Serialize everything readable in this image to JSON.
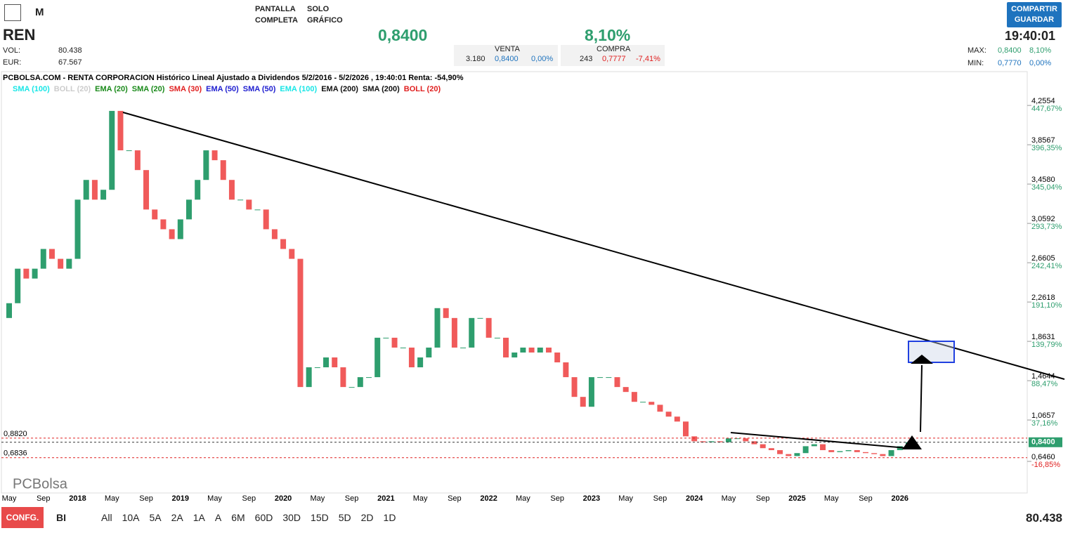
{
  "toolbar": {
    "period": "M",
    "fullscreen": [
      "PANTALLA",
      "COMPLETA"
    ],
    "chart_only": [
      "SOLO",
      "GRÁFICO"
    ],
    "share": [
      "COMPARTIR",
      "GUARDAR"
    ]
  },
  "quote": {
    "ticker": "REN",
    "vol_label": "VOL:",
    "vol": "80.438",
    "eur_label": "EUR:",
    "eur": "67.567",
    "price": "0,8400",
    "change": "8,10%",
    "sell_label": "VENTA",
    "sell": [
      "3.180",
      "0,8400",
      "0,00%"
    ],
    "buy_label": "COMPRA",
    "buy": [
      "243",
      "0,7777",
      "-7,41%"
    ],
    "time": "19:40:01",
    "max_label": "MAX:",
    "max": [
      "0,8400",
      "8,10%"
    ],
    "min_label": "MIN:",
    "min": [
      "0,7770",
      "0,00%"
    ]
  },
  "chart_data": {
    "type": "candlestick",
    "title": "PCBOLSA.COM - RENTA CORPORACION Histórico Lineal Ajustado a Dividendos 5/2/2016 - 5/2/2026 , 19:40:01 Renta: -54,90%",
    "indicators": [
      {
        "name": "SMA (100)",
        "color": "#19e6e6"
      },
      {
        "name": "BOLL (20)",
        "color": "#cccccc"
      },
      {
        "name": "EMA (20)",
        "color": "#1a8a1a"
      },
      {
        "name": "SMA (20)",
        "color": "#1a8a1a"
      },
      {
        "name": "SMA (30)",
        "color": "#e02020"
      },
      {
        "name": "EMA (50)",
        "color": "#2020d0"
      },
      {
        "name": "SMA (50)",
        "color": "#2020d0"
      },
      {
        "name": "EMA (100)",
        "color": "#19e6e6"
      },
      {
        "name": "EMA (200)",
        "color": "#111111"
      },
      {
        "name": "SMA (200)",
        "color": "#111111"
      },
      {
        "name": "BOLL (20)",
        "color": "#e02020"
      }
    ],
    "categories": [
      "May",
      null,
      null,
      null,
      "Sep",
      null,
      null,
      null,
      "2018",
      null,
      null,
      null,
      "May",
      null,
      null,
      null,
      "Sep",
      null,
      null,
      null,
      "2019",
      null,
      null,
      null,
      "May",
      null,
      null,
      null,
      "Sep",
      null,
      null,
      null,
      "2020",
      null,
      null,
      null,
      "May",
      null,
      null,
      null,
      "Sep",
      null,
      null,
      null,
      "2021",
      null,
      null,
      null,
      "May",
      null,
      null,
      null,
      "Sep",
      null,
      null,
      null,
      "2022",
      null,
      null,
      null,
      "May",
      null,
      null,
      null,
      "Sep",
      null,
      null,
      null,
      "2023",
      null,
      null,
      null,
      "May",
      null,
      null,
      null,
      "Sep",
      null,
      null,
      null,
      "2024",
      null,
      null,
      null,
      "May",
      null,
      null,
      null,
      "Sep",
      null,
      null,
      null,
      "2025",
      null,
      null,
      null,
      "May",
      null,
      null,
      null,
      "Sep",
      null,
      null,
      null,
      "2026",
      null
    ],
    "open": [
      2.1,
      2.25,
      2.6,
      2.5,
      2.6,
      2.8,
      2.7,
      2.6,
      2.7,
      3.3,
      3.5,
      3.3,
      3.4,
      4.2,
      3.8,
      3.8,
      3.6,
      3.2,
      3.1,
      3.0,
      2.9,
      3.1,
      3.3,
      3.5,
      3.8,
      3.7,
      3.5,
      3.3,
      3.3,
      3.2,
      3.2,
      3.0,
      2.9,
      2.8,
      2.7,
      1.4,
      1.6,
      1.6,
      1.7,
      1.6,
      1.4,
      1.4,
      1.5,
      1.5,
      1.9,
      1.9,
      1.8,
      1.8,
      1.6,
      1.7,
      1.8,
      2.2,
      2.1,
      1.8,
      1.8,
      2.1,
      2.1,
      1.9,
      1.9,
      1.7,
      1.75,
      1.8,
      1.75,
      1.8,
      1.75,
      1.65,
      1.5,
      1.3,
      1.2,
      1.5,
      1.5,
      1.5,
      1.4,
      1.35,
      1.25,
      1.25,
      1.22,
      1.15,
      1.1,
      1.05,
      0.9,
      0.85,
      0.84,
      0.85,
      0.84,
      0.88,
      0.88,
      0.85,
      0.82,
      0.78,
      0.76,
      0.72,
      0.7,
      0.73,
      0.8,
      0.82,
      0.76,
      0.74,
      0.75,
      0.76,
      0.74,
      0.73,
      0.72,
      0.7,
      0.76,
      0.8
    ],
    "close": [
      2.25,
      2.6,
      2.5,
      2.6,
      2.8,
      2.7,
      2.6,
      2.7,
      3.3,
      3.5,
      3.3,
      3.4,
      4.2,
      3.8,
      3.8,
      3.6,
      3.2,
      3.1,
      3.0,
      2.9,
      3.1,
      3.3,
      3.5,
      3.8,
      3.7,
      3.5,
      3.3,
      3.3,
      3.2,
      3.2,
      3.0,
      2.9,
      2.8,
      2.7,
      1.4,
      1.6,
      1.6,
      1.7,
      1.6,
      1.4,
      1.4,
      1.5,
      1.5,
      1.9,
      1.9,
      1.8,
      1.8,
      1.6,
      1.7,
      1.8,
      2.2,
      2.1,
      1.8,
      1.8,
      2.1,
      2.1,
      1.9,
      1.9,
      1.7,
      1.75,
      1.8,
      1.75,
      1.8,
      1.75,
      1.65,
      1.5,
      1.3,
      1.2,
      1.5,
      1.5,
      1.5,
      1.4,
      1.35,
      1.25,
      1.25,
      1.22,
      1.15,
      1.1,
      1.05,
      0.9,
      0.85,
      0.84,
      0.85,
      0.84,
      0.88,
      0.88,
      0.85,
      0.82,
      0.78,
      0.76,
      0.72,
      0.7,
      0.73,
      0.8,
      0.82,
      0.76,
      0.74,
      0.75,
      0.76,
      0.74,
      0.73,
      0.72,
      0.7,
      0.76,
      0.8,
      0.84
    ],
    "up_color": "#2e9e6e",
    "down_color": "#f05a5a",
    "ylim": [
      0.34,
      4.47
    ],
    "yticks": [
      {
        "value": 4.2554,
        "label": "4,2554"
      },
      {
        "value": 3.8567,
        "label": "3,8567"
      },
      {
        "value": 3.458,
        "label": "3,4580"
      },
      {
        "value": 3.0592,
        "label": "3,0592"
      },
      {
        "value": 2.6605,
        "label": "2,6605"
      },
      {
        "value": 2.2618,
        "label": "2,2618"
      },
      {
        "value": 1.8631,
        "label": "1,8631"
      },
      {
        "value": 1.4644,
        "label": "1,4644"
      },
      {
        "value": 1.0657,
        "label": "1,0657"
      },
      {
        "value": 0.646,
        "label": "0,6460"
      }
    ],
    "ytick_pct": [
      "447,67%",
      "396,35%",
      "345,04%",
      "293,73%",
      "242,41%",
      "191,10%",
      "139,79%",
      "88,47%",
      "37,16%",
      "-16,85%"
    ],
    "last_price": {
      "value": 0.84,
      "label": "0,8400"
    },
    "profile_labels": [
      {
        "value": 0.882,
        "label": "0,8820"
      },
      {
        "value": 0.6836,
        "label": "0,6836"
      }
    ],
    "logo": "PCBolsa"
  },
  "footer": {
    "config": "CONFG.",
    "mode": "BI",
    "ranges": [
      "All",
      "10A",
      "5A",
      "2A",
      "1A",
      "A",
      "6M",
      "60D",
      "30D",
      "15D",
      "5D",
      "2D",
      "1D"
    ],
    "volume": "80.438"
  }
}
